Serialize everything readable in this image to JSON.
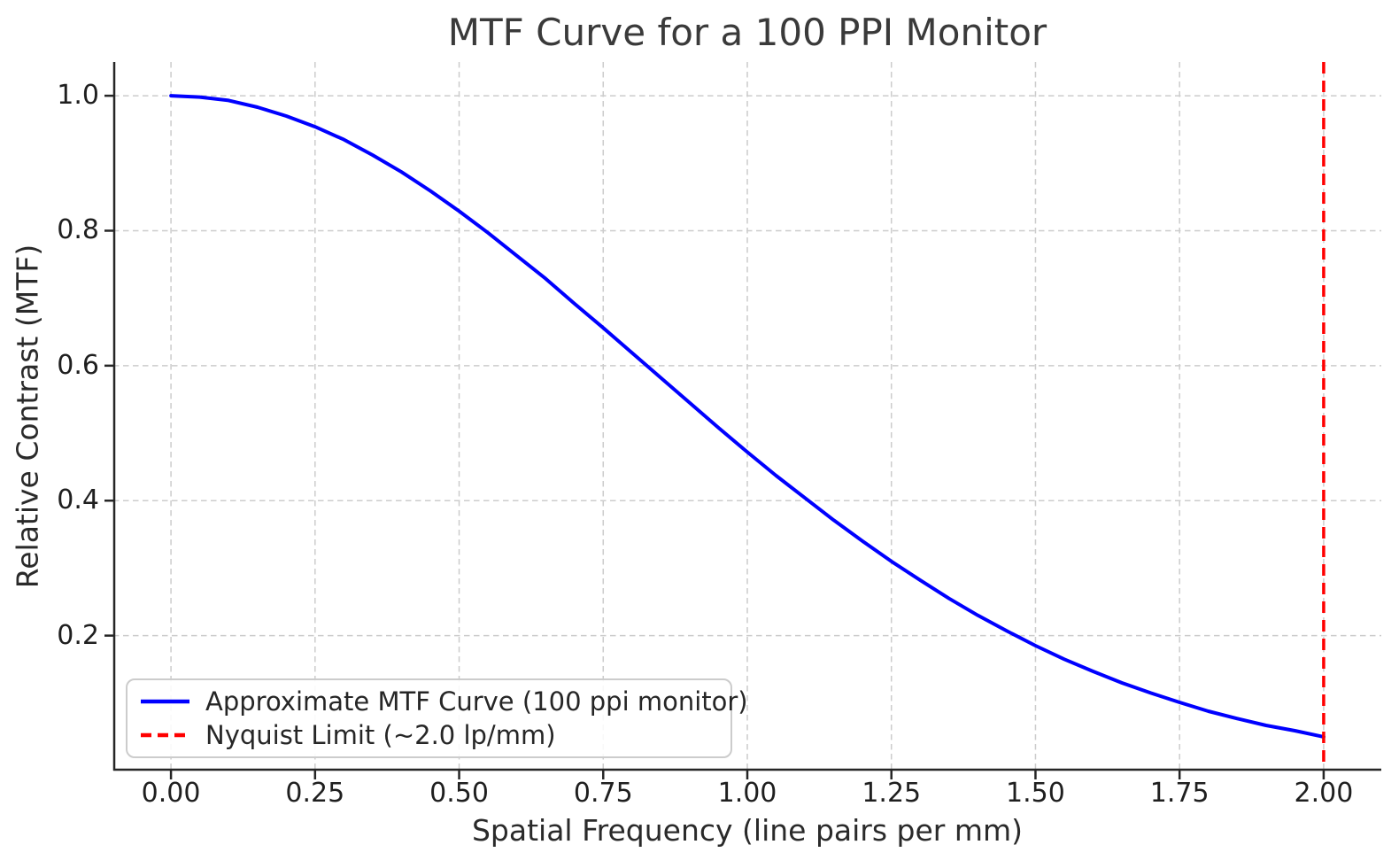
{
  "chart_data": {
    "type": "line",
    "title": "MTF Curve for a 100 PPI Monitor",
    "xlabel": "Spatial Frequency (line pairs per mm)",
    "ylabel": "Relative Contrast (MTF)",
    "xlim": [
      -0.1,
      2.1
    ],
    "ylim": [
      0,
      1.05
    ],
    "grid": "dashed-lightgray-both-axes",
    "xticks": [
      {
        "value": 0.0,
        "label": "0.00"
      },
      {
        "value": 0.25,
        "label": "0.25"
      },
      {
        "value": 0.5,
        "label": "0.50"
      },
      {
        "value": 0.75,
        "label": "0.75"
      },
      {
        "value": 1.0,
        "label": "1.00"
      },
      {
        "value": 1.25,
        "label": "1.25"
      },
      {
        "value": 1.5,
        "label": "1.50"
      },
      {
        "value": 1.75,
        "label": "1.75"
      },
      {
        "value": 2.0,
        "label": "2.00"
      }
    ],
    "yticks": [
      {
        "value": 0.2,
        "label": "0.2"
      },
      {
        "value": 0.4,
        "label": "0.4"
      },
      {
        "value": 0.6,
        "label": "0.6"
      },
      {
        "value": 0.8,
        "label": "0.8"
      },
      {
        "value": 1.0,
        "label": "1.0"
      }
    ],
    "series": [
      {
        "name": "Approximate MTF Curve (100 ppi monitor)",
        "color": "#0000ff",
        "style": "solid",
        "x": [
          0.0,
          0.05,
          0.1,
          0.15,
          0.2,
          0.25,
          0.3,
          0.35,
          0.4,
          0.45,
          0.5,
          0.55,
          0.6,
          0.65,
          0.7,
          0.75,
          0.8,
          0.85,
          0.9,
          0.95,
          1.0,
          1.05,
          1.1,
          1.15,
          1.2,
          1.25,
          1.3,
          1.35,
          1.4,
          1.45,
          1.5,
          1.55,
          1.6,
          1.65,
          1.7,
          1.75,
          1.8,
          1.85,
          1.9,
          1.95,
          2.0
        ],
        "y": [
          1.0,
          0.998,
          0.993,
          0.983,
          0.97,
          0.954,
          0.935,
          0.912,
          0.887,
          0.859,
          0.829,
          0.797,
          0.763,
          0.729,
          0.692,
          0.656,
          0.619,
          0.582,
          0.545,
          0.508,
          0.472,
          0.437,
          0.404,
          0.371,
          0.34,
          0.31,
          0.282,
          0.255,
          0.23,
          0.207,
          0.185,
          0.165,
          0.147,
          0.13,
          0.115,
          0.101,
          0.088,
          0.077,
          0.067,
          0.059,
          0.05
        ]
      }
    ],
    "vline": {
      "x": 2.0,
      "color": "#ff0000",
      "style": "dashed",
      "name": "Nyquist Limit (~2.0 lp/mm)"
    },
    "legend": {
      "position": "lower left",
      "entries": [
        {
          "label": "Approximate MTF Curve (100 ppi monitor)",
          "color": "#0000ff",
          "style": "solid"
        },
        {
          "label": "Nyquist Limit (~2.0 lp/mm)",
          "color": "#ff0000",
          "style": "dashed"
        }
      ]
    },
    "colors": {
      "curve": "#0000ff",
      "nyquist_line": "#ff0000",
      "grid": "#cccccc",
      "spine": "#262626",
      "background": "#ffffff"
    }
  }
}
